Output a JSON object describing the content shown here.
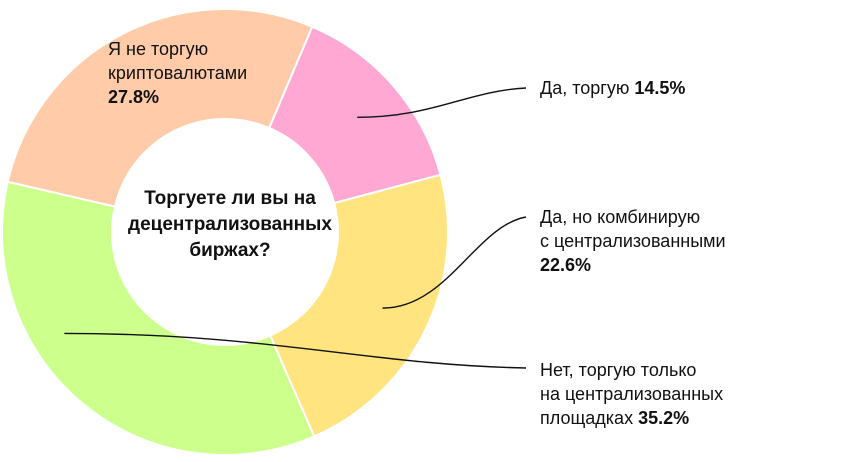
{
  "chart_data": {
    "type": "pie",
    "donut": true,
    "title": "Торгуете ли вы на децентрализованных биржах?",
    "title_lines": [
      "Торгуете ли вы на",
      "децентрализованных",
      "биржах?"
    ],
    "slices": [
      {
        "label": "Да, торгую",
        "label_lines": [
          "Да, торгую"
        ],
        "value": 14.5,
        "value_text": "14.5%",
        "color": "#FFA8D4"
      },
      {
        "label": "Да, но комбинирую с централизованными",
        "label_lines": [
          "Да, но комбинирую",
          "с централизованными"
        ],
        "value": 22.6,
        "value_text": "22.6%",
        "color": "#FFE480"
      },
      {
        "label": "Нет, торгую только на централизованных площадках",
        "label_lines": [
          "Нет, торгую только",
          "на централизованных",
          "площадках"
        ],
        "value": 35.2,
        "value_text": "35.2%",
        "color": "#CCFF8C"
      },
      {
        "label": "Я не торгую криптовалютами",
        "label_lines": [
          "Я не торгую",
          "криптовалютами"
        ],
        "value": 27.8,
        "value_text": "27.8%",
        "color": "#FFCBA8"
      }
    ]
  }
}
